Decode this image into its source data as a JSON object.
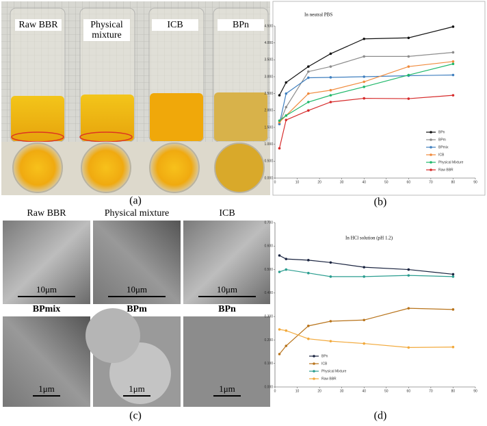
{
  "panels": {
    "a": {
      "label": "(a)",
      "vials": [
        "Raw BBR",
        "Physical mixture",
        "ICB",
        "BPn"
      ]
    },
    "b": {
      "label": "(b)"
    },
    "c": {
      "label": "(c)",
      "images": [
        {
          "title": "Raw BBR",
          "scale": "10μm"
        },
        {
          "title": "Physical mixture",
          "scale": "10μm"
        },
        {
          "title": "ICB",
          "scale": "10μm"
        },
        {
          "title": "BPmix",
          "scale": "1μm"
        },
        {
          "title": "BPm",
          "scale": "1μm"
        },
        {
          "title": "BPn",
          "scale": "1μm"
        }
      ]
    },
    "d": {
      "label": "(d)"
    }
  },
  "chart_data": [
    {
      "type": "line",
      "title": "In neutral PBS",
      "x": [
        2,
        5,
        15,
        25,
        40,
        60,
        80
      ],
      "xlim": [
        0,
        90
      ],
      "xticks": [
        0,
        10,
        20,
        30,
        40,
        50,
        60,
        70,
        80,
        90
      ],
      "ylim": [
        0,
        4.5
      ],
      "yticks": [
        {
          "value": 0,
          "label": "0.000"
        },
        {
          "value": 0.5,
          "label": "0.500"
        },
        {
          "value": 1,
          "label": "1.000"
        },
        {
          "value": 1.5,
          "label": "1.500"
        },
        {
          "value": 2,
          "label": "2.000"
        },
        {
          "value": 2.5,
          "label": "2.500"
        },
        {
          "value": 3,
          "label": "3.000"
        },
        {
          "value": 3.5,
          "label": "3.500"
        },
        {
          "value": 4,
          "label": "4.000"
        },
        {
          "value": 4.5,
          "label": "4.500"
        }
      ],
      "legend": "lower right",
      "series": [
        {
          "name": "BPn",
          "color": "#111111",
          "values": [
            2.45,
            2.83,
            3.3,
            3.68,
            4.12,
            4.15,
            4.48
          ]
        },
        {
          "name": "BPm",
          "color": "#8c8c8c",
          "values": [
            1.6,
            2.1,
            3.15,
            3.3,
            3.6,
            3.6,
            3.72
          ]
        },
        {
          "name": "BPmix",
          "color": "#3f7fbf",
          "values": [
            1.6,
            2.5,
            2.97,
            2.98,
            3.0,
            3.03,
            3.05
          ]
        },
        {
          "name": "ICB",
          "color": "#f08a3c",
          "values": [
            1.65,
            1.85,
            2.5,
            2.6,
            2.85,
            3.3,
            3.45
          ]
        },
        {
          "name": "Physical Mixture",
          "color": "#1fb86a",
          "values": [
            1.7,
            1.85,
            2.25,
            2.45,
            2.7,
            3.05,
            3.38
          ]
        },
        {
          "name": "Raw BBR",
          "color": "#d62a2a",
          "values": [
            0.88,
            1.72,
            2.0,
            2.25,
            2.36,
            2.35,
            2.45
          ]
        }
      ]
    },
    {
      "type": "line",
      "title": "In HCl solution (pH 1.2)",
      "x": [
        2,
        5,
        15,
        25,
        40,
        60,
        80
      ],
      "xlim": [
        0,
        90
      ],
      "xticks": [
        0,
        10,
        20,
        30,
        40,
        50,
        60,
        70,
        80,
        90
      ],
      "ylim": [
        0,
        0.7
      ],
      "yticks": [
        {
          "value": 0,
          "label": "0.000"
        },
        {
          "value": 0.1,
          "label": "0.100"
        },
        {
          "value": 0.2,
          "label": "0.200"
        },
        {
          "value": 0.3,
          "label": "0.300"
        },
        {
          "value": 0.4,
          "label": "0.400"
        },
        {
          "value": 0.5,
          "label": "0.500"
        },
        {
          "value": 0.6,
          "label": "0.600"
        },
        {
          "value": 0.7,
          "label": "0.700"
        }
      ],
      "legend": "lower left",
      "series": [
        {
          "name": "BPn",
          "color": "#1a2440",
          "values": [
            0.56,
            0.545,
            0.54,
            0.53,
            0.51,
            0.5,
            0.48
          ]
        },
        {
          "name": "ICB",
          "color": "#b8731a",
          "values": [
            0.14,
            0.175,
            0.26,
            0.28,
            0.285,
            0.335,
            0.33
          ]
        },
        {
          "name": "Physical Mixture",
          "color": "#2a9d8f",
          "values": [
            0.49,
            0.5,
            0.485,
            0.47,
            0.47,
            0.475,
            0.47
          ]
        },
        {
          "name": "Raw BBR",
          "color": "#f2a93b",
          "values": [
            0.245,
            0.24,
            0.205,
            0.195,
            0.185,
            0.168,
            0.17
          ]
        }
      ]
    }
  ]
}
